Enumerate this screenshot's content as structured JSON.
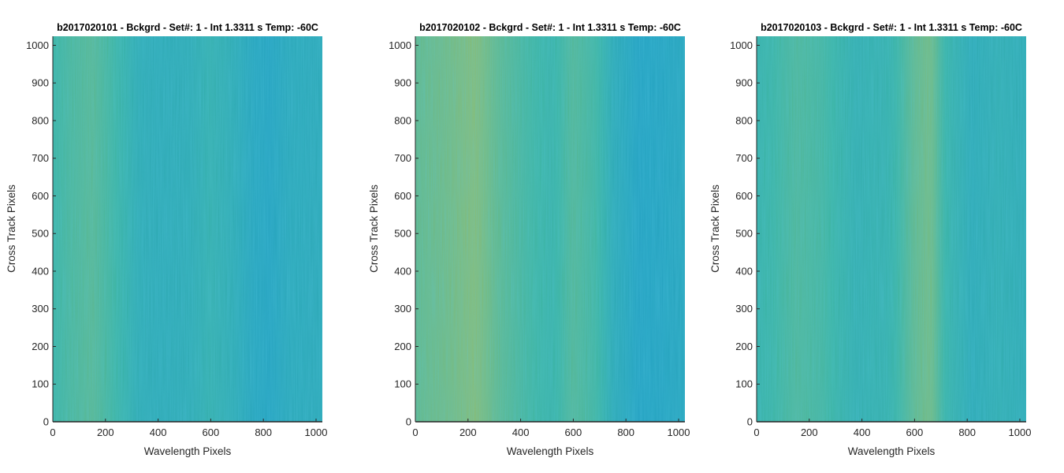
{
  "figure": {
    "colormap": "parula",
    "colors": {
      "low": "#1a9bd0",
      "mid": "#3eb5a5",
      "high": "#b6c25c",
      "axis": "#262626"
    }
  },
  "chart_data": [
    {
      "type": "heatmap",
      "title": "b2017020101 - Bckgrd - Set#: 1 - Int 1.3311 s Temp: -60C",
      "xlabel": "Wavelength Pixels",
      "ylabel": "Cross Track Pixels",
      "xlim": [
        0,
        1024
      ],
      "ylim": [
        0,
        1024
      ],
      "xticks": [
        0,
        200,
        400,
        600,
        800,
        1000
      ],
      "yticks": [
        0,
        100,
        200,
        300,
        400,
        500,
        600,
        700,
        800,
        900,
        1000
      ],
      "column_profile": [
        [
          0,
          0.5
        ],
        [
          60,
          0.56
        ],
        [
          150,
          0.62
        ],
        [
          230,
          0.52
        ],
        [
          330,
          0.32
        ],
        [
          420,
          0.3
        ],
        [
          520,
          0.32
        ],
        [
          600,
          0.4
        ],
        [
          680,
          0.33
        ],
        [
          760,
          0.22
        ],
        [
          820,
          0.18
        ],
        [
          900,
          0.26
        ],
        [
          1024,
          0.28
        ]
      ]
    },
    {
      "type": "heatmap",
      "title": "b2017020102 - Bckgrd - Set#: 1 - Int 1.3311 s Temp: -60C",
      "xlabel": "Wavelength Pixels",
      "ylabel": "Cross Track Pixels",
      "xlim": [
        0,
        1024
      ],
      "ylim": [
        0,
        1024
      ],
      "xticks": [
        0,
        200,
        400,
        600,
        800,
        1000
      ],
      "yticks": [
        0,
        100,
        200,
        300,
        400,
        500,
        600,
        700,
        800,
        900,
        1000
      ],
      "column_profile": [
        [
          0,
          0.66
        ],
        [
          120,
          0.72
        ],
        [
          230,
          0.8
        ],
        [
          320,
          0.64
        ],
        [
          420,
          0.54
        ],
        [
          520,
          0.46
        ],
        [
          600,
          0.6
        ],
        [
          690,
          0.52
        ],
        [
          750,
          0.3
        ],
        [
          850,
          0.16
        ],
        [
          950,
          0.18
        ],
        [
          1024,
          0.22
        ]
      ]
    },
    {
      "type": "heatmap",
      "title": "b2017020103 - Bckgrd - Set#: 1 - Int 1.3311 s Temp: -60C",
      "xlabel": "Wavelength Pixels",
      "ylabel": "Cross Track Pixels",
      "xlim": [
        0,
        1024
      ],
      "ylim": [
        0,
        1024
      ],
      "xticks": [
        0,
        200,
        400,
        600,
        800,
        1000
      ],
      "yticks": [
        0,
        100,
        200,
        300,
        400,
        500,
        600,
        700,
        800,
        900,
        1000
      ],
      "column_profile": [
        [
          0,
          0.44
        ],
        [
          150,
          0.58
        ],
        [
          250,
          0.54
        ],
        [
          380,
          0.38
        ],
        [
          500,
          0.42
        ],
        [
          600,
          0.66
        ],
        [
          660,
          0.74
        ],
        [
          720,
          0.46
        ],
        [
          820,
          0.3
        ],
        [
          920,
          0.36
        ],
        [
          1024,
          0.32
        ]
      ]
    }
  ]
}
